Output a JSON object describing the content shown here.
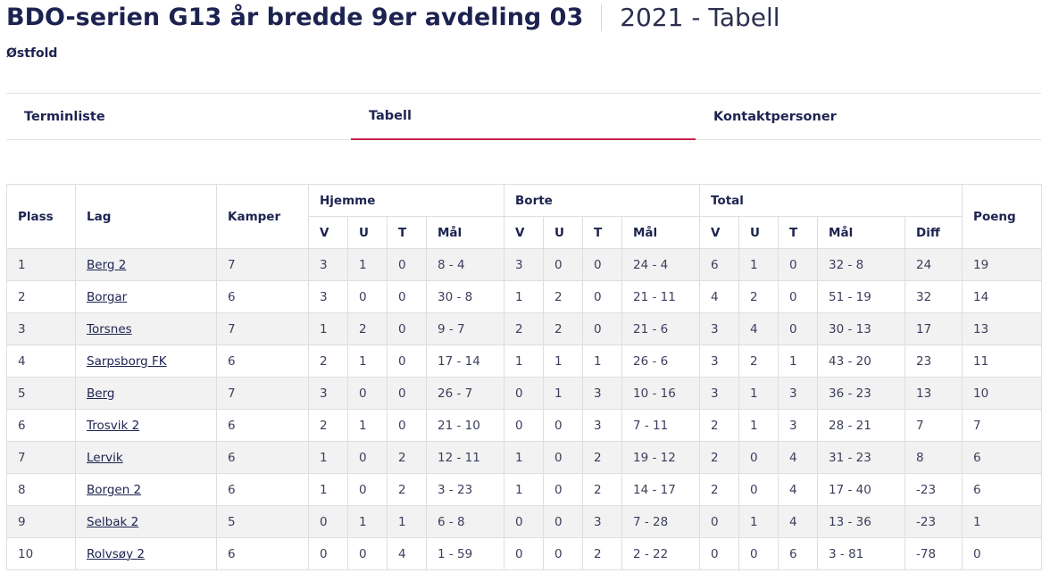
{
  "header": {
    "title": "BDO-serien G13 år bredde 9er avdeling 03",
    "season": "2021 - Tabell",
    "region": "Østfold"
  },
  "tabs": [
    {
      "label": "Terminliste"
    },
    {
      "label": "Tabell"
    },
    {
      "label": "Kontaktpersoner"
    }
  ],
  "table": {
    "headers": {
      "plass": "Plass",
      "lag": "Lag",
      "kamper": "Kamper",
      "hjemme": "Hjemme",
      "borte": "Borte",
      "total": "Total",
      "poeng": "Poeng",
      "v": "V",
      "u": "U",
      "t": "T",
      "maal": "Mål",
      "diff": "Diff"
    },
    "rows": [
      {
        "plass": "1",
        "lag": "Berg 2",
        "kamper": "7",
        "hv": "3",
        "hu": "1",
        "ht": "0",
        "hm": "8 - 4",
        "bv": "3",
        "bu": "0",
        "bt": "0",
        "bm": "24 - 4",
        "tv": "6",
        "tu": "1",
        "tt": "0",
        "tm": "32 - 8",
        "diff": "24",
        "poeng": "19"
      },
      {
        "plass": "2",
        "lag": "Borgar",
        "kamper": "6",
        "hv": "3",
        "hu": "0",
        "ht": "0",
        "hm": "30 - 8",
        "bv": "1",
        "bu": "2",
        "bt": "0",
        "bm": "21 - 11",
        "tv": "4",
        "tu": "2",
        "tt": "0",
        "tm": "51 - 19",
        "diff": "32",
        "poeng": "14"
      },
      {
        "plass": "3",
        "lag": "Torsnes",
        "kamper": "7",
        "hv": "1",
        "hu": "2",
        "ht": "0",
        "hm": "9 - 7",
        "bv": "2",
        "bu": "2",
        "bt": "0",
        "bm": "21 - 6",
        "tv": "3",
        "tu": "4",
        "tt": "0",
        "tm": "30 - 13",
        "diff": "17",
        "poeng": "13"
      },
      {
        "plass": "4",
        "lag": "Sarpsborg FK",
        "kamper": "6",
        "hv": "2",
        "hu": "1",
        "ht": "0",
        "hm": "17 - 14",
        "bv": "1",
        "bu": "1",
        "bt": "1",
        "bm": "26 - 6",
        "tv": "3",
        "tu": "2",
        "tt": "1",
        "tm": "43 - 20",
        "diff": "23",
        "poeng": "11"
      },
      {
        "plass": "5",
        "lag": "Berg",
        "kamper": "7",
        "hv": "3",
        "hu": "0",
        "ht": "0",
        "hm": "26 - 7",
        "bv": "0",
        "bu": "1",
        "bt": "3",
        "bm": "10 - 16",
        "tv": "3",
        "tu": "1",
        "tt": "3",
        "tm": "36 - 23",
        "diff": "13",
        "poeng": "10"
      },
      {
        "plass": "6",
        "lag": "Trosvik 2",
        "kamper": "6",
        "hv": "2",
        "hu": "1",
        "ht": "0",
        "hm": "21 - 10",
        "bv": "0",
        "bu": "0",
        "bt": "3",
        "bm": "7 - 11",
        "tv": "2",
        "tu": "1",
        "tt": "3",
        "tm": "28 - 21",
        "diff": "7",
        "poeng": "7"
      },
      {
        "plass": "7",
        "lag": "Lervik",
        "kamper": "6",
        "hv": "1",
        "hu": "0",
        "ht": "2",
        "hm": "12 - 11",
        "bv": "1",
        "bu": "0",
        "bt": "2",
        "bm": "19 - 12",
        "tv": "2",
        "tu": "0",
        "tt": "4",
        "tm": "31 - 23",
        "diff": "8",
        "poeng": "6"
      },
      {
        "plass": "8",
        "lag": "Borgen 2",
        "kamper": "6",
        "hv": "1",
        "hu": "0",
        "ht": "2",
        "hm": "3 - 23",
        "bv": "1",
        "bu": "0",
        "bt": "2",
        "bm": "14 - 17",
        "tv": "2",
        "tu": "0",
        "tt": "4",
        "tm": "17 - 40",
        "diff": "-23",
        "poeng": "6"
      },
      {
        "plass": "9",
        "lag": "Selbak 2",
        "kamper": "5",
        "hv": "0",
        "hu": "1",
        "ht": "1",
        "hm": "6 - 8",
        "bv": "0",
        "bu": "0",
        "bt": "3",
        "bm": "7 - 28",
        "tv": "0",
        "tu": "1",
        "tt": "4",
        "tm": "13 - 36",
        "diff": "-23",
        "poeng": "1"
      },
      {
        "plass": "10",
        "lag": "Rolvsøy 2",
        "kamper": "6",
        "hv": "0",
        "hu": "0",
        "ht": "4",
        "hm": "1 - 59",
        "bv": "0",
        "bu": "0",
        "bt": "2",
        "bm": "2 - 22",
        "tv": "0",
        "tu": "0",
        "tt": "6",
        "tm": "3 - 81",
        "diff": "-78",
        "poeng": "0"
      }
    ]
  }
}
